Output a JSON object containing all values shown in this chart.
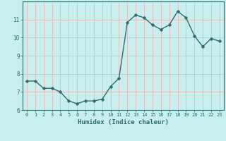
{
  "x": [
    0,
    1,
    2,
    3,
    4,
    5,
    6,
    7,
    8,
    9,
    10,
    11,
    12,
    13,
    14,
    15,
    16,
    17,
    18,
    19,
    20,
    21,
    22,
    23
  ],
  "y": [
    7.6,
    7.6,
    7.2,
    7.2,
    7.0,
    6.5,
    6.35,
    6.5,
    6.5,
    6.6,
    7.3,
    7.75,
    10.85,
    11.25,
    11.1,
    10.7,
    10.45,
    10.7,
    11.45,
    11.1,
    10.1,
    9.5,
    9.95,
    9.8
  ],
  "xlabel": "Humidex (Indice chaleur)",
  "xlim": [
    -0.5,
    23.5
  ],
  "ylim": [
    6,
    12
  ],
  "yticks": [
    6,
    7,
    8,
    9,
    10,
    11
  ],
  "xticks": [
    0,
    1,
    2,
    3,
    4,
    5,
    6,
    7,
    8,
    9,
    10,
    11,
    12,
    13,
    14,
    15,
    16,
    17,
    18,
    19,
    20,
    21,
    22,
    23
  ],
  "line_color": "#2d6e6e",
  "marker_color": "#2d6e6e",
  "bg_color": "#c8eeee",
  "grid_color": "#e8b8b8",
  "label_color": "#2d6e6e",
  "tick_color": "#2d6e6e",
  "line_width": 1.0,
  "marker_size": 2.5
}
